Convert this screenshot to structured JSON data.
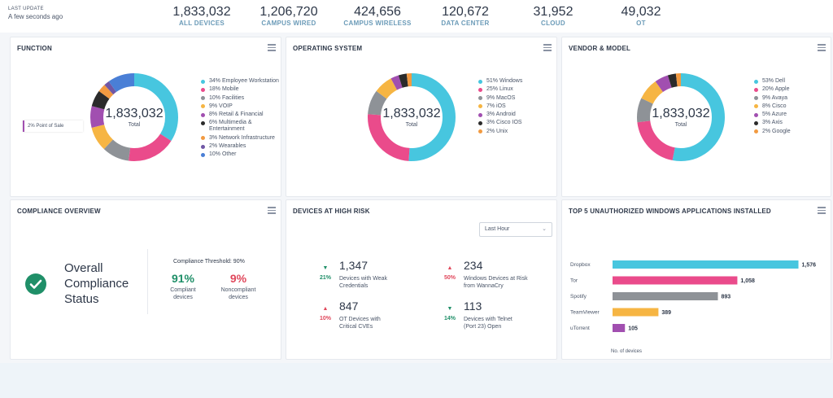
{
  "header": {
    "last_update_label": "LAST UPDATE",
    "last_update_value": "A few seconds ago",
    "stats": [
      {
        "value": "1,833,032",
        "label": "ALL DEVICES"
      },
      {
        "value": "1,206,720",
        "label": "CAMPUS WIRED"
      },
      {
        "value": "424,656",
        "label": "CAMPUS WIRELESS"
      },
      {
        "value": "120,672",
        "label": "DATA CENTER"
      },
      {
        "value": "31,952",
        "label": "CLOUD"
      },
      {
        "value": "49,032",
        "label": "OT"
      }
    ]
  },
  "function": {
    "title": "FUNCTION",
    "center_value": "1,833,032",
    "center_label": "Total",
    "tooltip": "2% Point of Sale",
    "legend": [
      {
        "label": "34% Employee Workstation",
        "color": "#47c6df",
        "pct": 34
      },
      {
        "label": "18% Mobile",
        "color": "#ea4b8b",
        "pct": 18
      },
      {
        "label": "10% Facilities",
        "color": "#8e9297",
        "pct": 10
      },
      {
        "label": "9% VOIP",
        "color": "#f6b543",
        "pct": 9
      },
      {
        "label": "8% Retail & Financial",
        "color": "#a14fb0",
        "pct": 8
      },
      {
        "label": "6% Multimedia & Entertainment",
        "color": "#2b2b2b",
        "pct": 6
      },
      {
        "label": "3% Network Infrastructure",
        "color": "#f29a41",
        "pct": 3
      },
      {
        "label": "2% Wearables",
        "color": "#7057a5",
        "pct": 2
      },
      {
        "label": "10% Other",
        "color": "#4a7fd6",
        "pct": 10
      }
    ]
  },
  "os": {
    "title": "OPERATING SYSTEM",
    "center_value": "1,833,032",
    "center_label": "Total",
    "legend": [
      {
        "label": "51% Windows",
        "color": "#47c6df",
        "pct": 51
      },
      {
        "label": "25% Linux",
        "color": "#ea4b8b",
        "pct": 25
      },
      {
        "label": "9% MacOS",
        "color": "#8e9297",
        "pct": 9
      },
      {
        "label": "7% iOS",
        "color": "#f6b543",
        "pct": 7
      },
      {
        "label": "3% Android",
        "color": "#a14fb0",
        "pct": 3
      },
      {
        "label": "3% Cisco IOS",
        "color": "#2b2b2b",
        "pct": 3
      },
      {
        "label": "2% Unix",
        "color": "#f29a41",
        "pct": 2
      }
    ]
  },
  "vendor": {
    "title": "VENDOR & MODEL",
    "center_value": "1,833,032",
    "center_label": "Total",
    "legend": [
      {
        "label": "53% Dell",
        "color": "#47c6df",
        "pct": 53
      },
      {
        "label": "20% Apple",
        "color": "#ea4b8b",
        "pct": 20
      },
      {
        "label": "9% Avaya",
        "color": "#8e9297",
        "pct": 9
      },
      {
        "label": "8% Cisco",
        "color": "#f6b543",
        "pct": 8
      },
      {
        "label": "5% Azure",
        "color": "#a14fb0",
        "pct": 5
      },
      {
        "label": "3% Axis",
        "color": "#2b2b2b",
        "pct": 3
      },
      {
        "label": "2% Google",
        "color": "#f29a41",
        "pct": 2
      }
    ]
  },
  "compliance": {
    "title": "COMPLIANCE OVERVIEW",
    "status_line1": "Overall",
    "status_line2": "Compliance",
    "status_line3": "Status",
    "threshold": "Compliance Threshold: 90%",
    "compliant_value": "91%",
    "compliant_label": "Compliant devices",
    "noncompliant_value": "9%",
    "noncompliant_label": "Noncompliant devices",
    "check_color": "#1f8f68"
  },
  "risk": {
    "title": "DEVICES AT HIGH RISK",
    "dropdown_value": "Last Hour",
    "items": [
      {
        "pct": "21%",
        "direction": "down",
        "value": "1,347",
        "desc": "Devices with Weak Credentials"
      },
      {
        "pct": "50%",
        "direction": "up",
        "value": "234",
        "desc": "Windows Devices at Risk from WannaCry"
      },
      {
        "pct": "10%",
        "direction": "up",
        "value": "847",
        "desc": "OT Devices with Critical CVEs"
      },
      {
        "pct": "14%",
        "direction": "down",
        "value": "113",
        "desc": "Devices with Telnet (Port 23) Open"
      }
    ]
  },
  "apps": {
    "title": "TOP 5 UNAUTHORIZED WINDOWS APPLICATIONS INSTALLED",
    "axis_label": "No. of devices",
    "chart_data": {
      "type": "bar",
      "orientation": "horizontal",
      "categories": [
        "Dropbox",
        "Tor",
        "Spotify",
        "TeamViewer",
        "uTorrent"
      ],
      "values": [
        1576,
        1058,
        893,
        389,
        105
      ],
      "value_labels": [
        "1,576",
        "1,058",
        "893",
        "389",
        "105"
      ],
      "colors": [
        "#47c6df",
        "#ea4b8b",
        "#8e9297",
        "#f6b543",
        "#a14fb0"
      ],
      "xlabel": "No. of devices",
      "xlim": [
        0,
        1600
      ]
    }
  }
}
